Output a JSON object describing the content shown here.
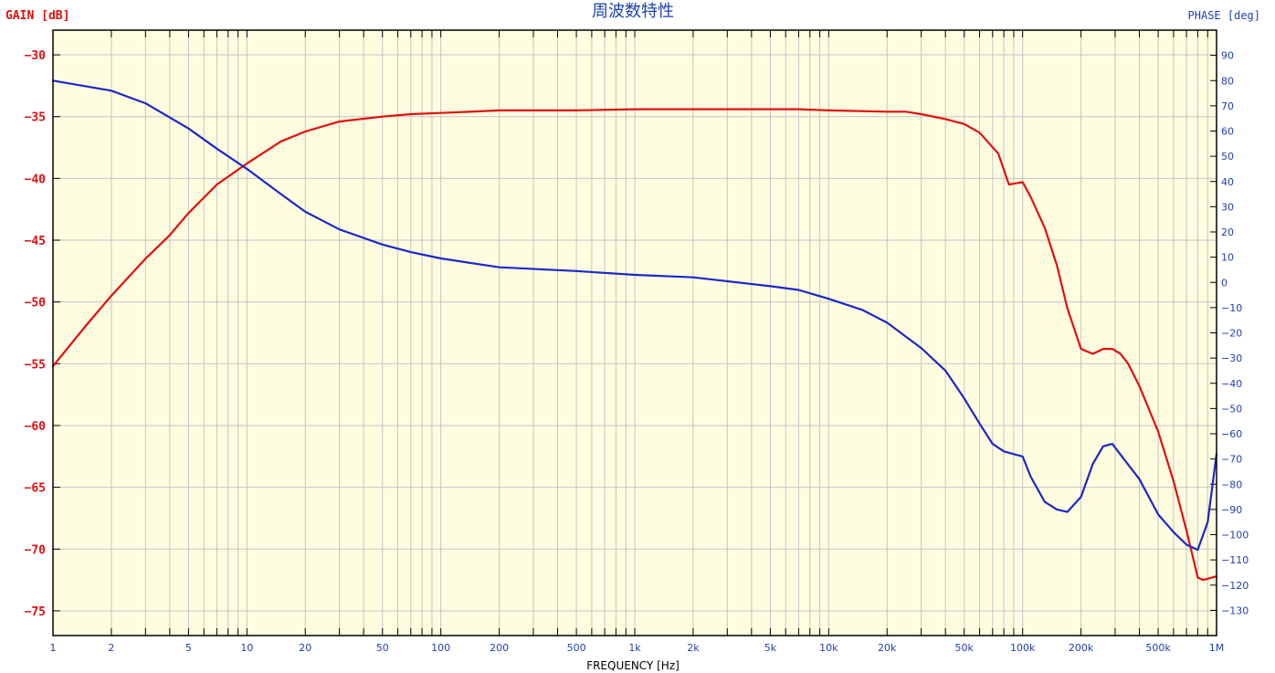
{
  "chart_data": {
    "type": "line",
    "title": "周波数特性",
    "xlabel": "FREQUENCY [Hz]",
    "ylabel_left": "GAIN [dB]",
    "ylabel_right": "PHASE [deg]",
    "x_scale": "log",
    "xlim": [
      1,
      1000000
    ],
    "ylim_left": [
      -77,
      -28
    ],
    "ylim_right": [
      -140,
      100
    ],
    "grid": true,
    "x_ticks": [
      {
        "v": 1,
        "label": "1"
      },
      {
        "v": 2,
        "label": "2"
      },
      {
        "v": 5,
        "label": "5"
      },
      {
        "v": 10,
        "label": "10"
      },
      {
        "v": 20,
        "label": "20"
      },
      {
        "v": 50,
        "label": "50"
      },
      {
        "v": 100,
        "label": "100"
      },
      {
        "v": 200,
        "label": "200"
      },
      {
        "v": 500,
        "label": "500"
      },
      {
        "v": 1000,
        "label": "1k"
      },
      {
        "v": 2000,
        "label": "2k"
      },
      {
        "v": 5000,
        "label": "5k"
      },
      {
        "v": 10000,
        "label": "10k"
      },
      {
        "v": 20000,
        "label": "20k"
      },
      {
        "v": 50000,
        "label": "50k"
      },
      {
        "v": 100000,
        "label": "100k"
      },
      {
        "v": 200000,
        "label": "200k"
      },
      {
        "v": 500000,
        "label": "500k"
      },
      {
        "v": 1000000,
        "label": "1M"
      }
    ],
    "y_ticks_left": [
      -30,
      -35,
      -40,
      -45,
      -50,
      -55,
      -60,
      -65,
      -70,
      -75
    ],
    "y_ticks_right": [
      90,
      80,
      70,
      60,
      50,
      40,
      30,
      20,
      10,
      0,
      -10,
      -20,
      -30,
      -40,
      -50,
      -60,
      -70,
      -80,
      -90,
      -100,
      -110,
      -120,
      -130
    ],
    "series": [
      {
        "axis": "left",
        "color": "#e01010",
        "x": [
          1,
          1.5,
          2,
          3,
          4,
          5,
          7,
          10,
          15,
          20,
          30,
          50,
          70,
          100,
          200,
          500,
          1000,
          2000,
          5000,
          7000,
          10000,
          20000,
          25000,
          30000,
          40000,
          50000,
          60000,
          75000,
          85000,
          100000,
          110000,
          130000,
          150000,
          170000,
          200000,
          230000,
          260000,
          290000,
          320000,
          350000,
          400000,
          500000,
          600000,
          700000,
          800000,
          850000,
          900000,
          1000000
        ],
        "y": [
          -55.2,
          -51.8,
          -49.5,
          -46.5,
          -44.6,
          -42.8,
          -40.5,
          -38.8,
          -37.0,
          -36.2,
          -35.4,
          -35.0,
          -34.8,
          -34.7,
          -34.5,
          -34.5,
          -34.4,
          -34.4,
          -34.4,
          -34.4,
          -34.5,
          -34.6,
          -34.6,
          -34.8,
          -35.2,
          -35.6,
          -36.3,
          -38.0,
          -40.5,
          -40.3,
          -41.5,
          -44.0,
          -47.0,
          -50.5,
          -53.8,
          -54.2,
          -53.8,
          -53.8,
          -54.2,
          -55.0,
          -56.8,
          -60.5,
          -64.5,
          -68.5,
          -72.3,
          -72.5,
          -72.4,
          -72.2
        ]
      },
      {
        "axis": "right",
        "color": "#1a28c8",
        "x": [
          1,
          2,
          3,
          5,
          7,
          10,
          15,
          20,
          30,
          50,
          70,
          100,
          200,
          500,
          1000,
          2000,
          5000,
          7000,
          10000,
          15000,
          20000,
          30000,
          40000,
          50000,
          60000,
          70000,
          80000,
          100000,
          110000,
          130000,
          150000,
          170000,
          200000,
          230000,
          260000,
          290000,
          400000,
          500000,
          600000,
          700000,
          800000,
          900000,
          1000000
        ],
        "y": [
          80,
          76,
          71,
          61,
          53,
          45,
          35,
          28,
          21,
          15,
          12,
          9.5,
          6,
          4.5,
          3,
          2,
          -1.5,
          -3,
          -6.5,
          -11,
          -16,
          -26,
          -35,
          -46,
          -56,
          -64,
          -67,
          -69,
          -77,
          -87,
          -90,
          -91,
          -85,
          -72,
          -65,
          -64,
          -78,
          -92,
          -99,
          -104,
          -106,
          -95,
          -68
        ]
      }
    ]
  }
}
